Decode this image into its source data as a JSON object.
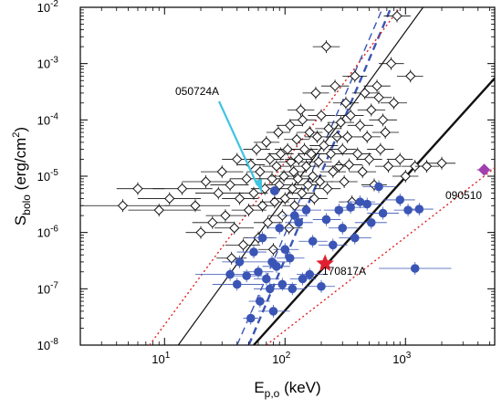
{
  "chart_data": {
    "type": "scatter",
    "title": "",
    "xlabel": {
      "main": "E",
      "sub": "p,o",
      "unit": " (keV)"
    },
    "ylabel": {
      "main": "S",
      "sub": "bolo",
      "unit_pre": " (erg/cm",
      "unit_sup": "2",
      "unit_post": ")"
    },
    "x_scale": "log",
    "y_scale": "log",
    "xlim": [
      2,
      5500
    ],
    "ylim": [
      1e-08,
      0.01
    ],
    "x_ticks": [
      {
        "value": 10,
        "base": "10",
        "exp": "1"
      },
      {
        "value": 100,
        "base": "10",
        "exp": "2"
      },
      {
        "value": 1000,
        "base": "10",
        "exp": "3"
      }
    ],
    "y_ticks": [
      {
        "value": 1e-08,
        "base": "10",
        "exp": "-8"
      },
      {
        "value": 1e-07,
        "base": "10",
        "exp": "-7"
      },
      {
        "value": 1e-06,
        "base": "10",
        "exp": "-6"
      },
      {
        "value": 1e-05,
        "base": "10",
        "exp": "-5"
      },
      {
        "value": 0.0001,
        "base": "10",
        "exp": "-4"
      },
      {
        "value": 0.001,
        "base": "10",
        "exp": "-3"
      },
      {
        "value": 0.01,
        "base": "10",
        "exp": "-2"
      }
    ],
    "grid": false,
    "legend": "none",
    "colors": {
      "long": "#111111",
      "short": "#3a55b5",
      "red_fit": "#e02020",
      "star": "#e02030",
      "special": "#a040b0",
      "arrow": "#40c4e0"
    },
    "lines": [
      {
        "group": "black-solid-thin",
        "color": "#111111",
        "style": "solid",
        "width": 1.2,
        "points": [
          [
            13,
            1e-08
          ],
          [
            1400,
            0.01
          ]
        ]
      },
      {
        "group": "black-solid-thick",
        "color": "#111111",
        "style": "solid",
        "width": 2.4,
        "points": [
          [
            55,
            1e-08
          ],
          [
            5500,
            0.00055
          ]
        ]
      },
      {
        "group": "blue-dashed-thin",
        "color": "#3a55b5",
        "style": "dashed",
        "width": 1.4,
        "points": [
          [
            40,
            1e-08
          ],
          [
            650,
            0.01
          ]
        ]
      },
      {
        "group": "blue-dashed-thick",
        "color": "#3a55b5",
        "style": "dashed",
        "width": 2.4,
        "points": [
          [
            50,
            1e-08
          ],
          [
            760,
            0.01
          ]
        ]
      },
      {
        "group": "red-dotted-left",
        "color": "#e02020",
        "style": "dotted",
        "width": 1.4,
        "points": [
          [
            7.5,
            1e-08
          ],
          [
            900,
            0.01
          ]
        ]
      },
      {
        "group": "red-dotted-right",
        "color": "#e02020",
        "style": "dotted",
        "width": 1.4,
        "points": [
          [
            70,
            1e-08
          ],
          [
            5500,
            1.4e-05
          ]
        ]
      }
    ],
    "series": [
      {
        "marker": "diamond",
        "color": "#111111",
        "points": [
          [
            4.5,
            3e-06,
            1.5,
            11
          ],
          [
            6,
            6e-06,
            4,
            10
          ],
          [
            9,
            2.5e-06,
            5,
            20
          ],
          [
            11,
            4e-06,
            6,
            20
          ],
          [
            14,
            6e-06,
            8,
            25
          ],
          [
            18,
            3e-06,
            10,
            35
          ],
          [
            20,
            1e-06,
            15,
            30
          ],
          [
            22,
            8e-06,
            14,
            35
          ],
          [
            25,
            1.5e-06,
            17,
            38
          ],
          [
            28,
            5e-06,
            18,
            45
          ],
          [
            30,
            1.2e-05,
            20,
            45
          ],
          [
            32,
            2e-06,
            22,
            48
          ],
          [
            35,
            7e-06,
            24,
            50
          ],
          [
            36,
            3.5e-07,
            27,
            48
          ],
          [
            38,
            1.2e-06,
            26,
            55
          ],
          [
            40,
            2e-05,
            30,
            55
          ],
          [
            42,
            4e-06,
            30,
            60
          ],
          [
            45,
            6e-07,
            32,
            62
          ],
          [
            48,
            9e-06,
            35,
            65
          ],
          [
            50,
            2.5e-06,
            36,
            70
          ],
          [
            52,
            1.6e-05,
            40,
            68
          ],
          [
            55,
            5e-06,
            42,
            72
          ],
          [
            58,
            3e-05,
            45,
            75
          ],
          [
            60,
            8e-07,
            45,
            80
          ],
          [
            62,
            1.2e-05,
            48,
            80
          ],
          [
            65,
            3e-06,
            50,
            85
          ],
          [
            68,
            6e-06,
            52,
            88
          ],
          [
            70,
            4e-05,
            55,
            90
          ],
          [
            72,
            1.5e-06,
            55,
            95
          ],
          [
            75,
            2e-05,
            58,
            98
          ],
          [
            78,
            9e-06,
            60,
            100
          ],
          [
            80,
            5e-07,
            60,
            105
          ],
          [
            82,
            3.5e-06,
            62,
            108
          ],
          [
            85,
            1.5e-05,
            65,
            110
          ],
          [
            88,
            6e-05,
            70,
            110
          ],
          [
            90,
            7e-06,
            70,
            115
          ],
          [
            92,
            2.5e-05,
            72,
            118
          ],
          [
            95,
            2e-06,
            72,
            125
          ],
          [
            98,
            1e-05,
            76,
            125
          ],
          [
            100,
            4e-06,
            78,
            130
          ],
          [
            105,
            3e-05,
            82,
            135
          ],
          [
            108,
            1.2e-06,
            84,
            140
          ],
          [
            110,
            8e-05,
            85,
            140
          ],
          [
            112,
            1.8e-05,
            88,
            145
          ],
          [
            115,
            6e-06,
            90,
            148
          ],
          [
            118,
            1.2e-05,
            92,
            150
          ],
          [
            120,
            3e-06,
            95,
            155
          ],
          [
            125,
            4.5e-05,
            98,
            160
          ],
          [
            128,
            9e-06,
            100,
            165
          ],
          [
            130,
            2e-05,
            100,
            170
          ],
          [
            135,
            0.00015,
            105,
            175
          ],
          [
            138,
            5e-06,
            108,
            178
          ],
          [
            140,
            0.0001,
            110,
            180
          ],
          [
            145,
            3e-05,
            112,
            188
          ],
          [
            150,
            1.5e-05,
            118,
            192
          ],
          [
            155,
            7e-06,
            120,
            200
          ],
          [
            160,
            6e-05,
            125,
            205
          ],
          [
            165,
            2.5e-05,
            128,
            212
          ],
          [
            170,
            1e-05,
            132,
            220
          ],
          [
            175,
            4e-06,
            135,
            225
          ],
          [
            180,
            0.0003,
            140,
            232
          ],
          [
            185,
            5e-05,
            145,
            240
          ],
          [
            190,
            1.8e-05,
            148,
            245
          ],
          [
            195,
            8e-06,
            150,
            250
          ],
          [
            200,
            0.00012,
            155,
            260
          ],
          [
            210,
            3.5e-05,
            160,
            275
          ],
          [
            220,
            0.002,
            170,
            285
          ],
          [
            225,
            6e-06,
            175,
            290
          ],
          [
            230,
            7e-05,
            178,
            295
          ],
          [
            240,
            2.5e-05,
            185,
            310
          ],
          [
            250,
            1.2e-05,
            195,
            320
          ],
          [
            260,
            0.0004,
            200,
            340
          ],
          [
            270,
            5e-05,
            210,
            350
          ],
          [
            280,
            1.5e-05,
            215,
            360
          ],
          [
            290,
            9e-05,
            225,
            375
          ],
          [
            300,
            3e-05,
            230,
            390
          ],
          [
            310,
            8e-06,
            240,
            400
          ],
          [
            320,
            0.0002,
            250,
            410
          ],
          [
            330,
            5e-05,
            255,
            430
          ],
          [
            340,
            1.6e-05,
            265,
            440
          ],
          [
            350,
            0.00012,
            270,
            450
          ],
          [
            360,
            3.5e-06,
            280,
            460
          ],
          [
            380,
            0.0006,
            300,
            480
          ],
          [
            400,
            2.5e-05,
            310,
            520
          ],
          [
            420,
            8e-05,
            330,
            540
          ],
          [
            440,
            1.2e-05,
            340,
            570
          ],
          [
            460,
            0.0003,
            360,
            590
          ],
          [
            480,
            5e-05,
            375,
            620
          ],
          [
            500,
            2e-05,
            390,
            640
          ],
          [
            520,
            0.00015,
            400,
            680
          ],
          [
            550,
            7e-06,
            430,
            700
          ],
          [
            580,
            0.0004,
            450,
            750
          ],
          [
            600,
            0.00025,
            470,
            770
          ],
          [
            620,
            3e-05,
            480,
            800
          ],
          [
            650,
            0.0001,
            500,
            850
          ],
          [
            680,
            6e-05,
            530,
            880
          ],
          [
            720,
            1.5e-05,
            560,
            920
          ],
          [
            760,
            0.001,
            600,
            970
          ],
          [
            800,
            0.0002,
            620,
            1030
          ],
          [
            850,
            0.007,
            660,
            1100
          ],
          [
            900,
            2e-05,
            700,
            1150
          ],
          [
            1000,
            1e-05,
            780,
            1280
          ],
          [
            1100,
            0.0006,
            850,
            1400
          ],
          [
            1200,
            1.5e-05,
            930,
            1550
          ],
          [
            1500,
            1.5e-05,
            1200,
            1900
          ],
          [
            2000,
            1.7e-05,
            1500,
            2600
          ]
        ]
      },
      {
        "marker": "circle",
        "color": "#3a55b5",
        "points": [
          [
            35,
            1.8e-07,
            18,
            60
          ],
          [
            40,
            1.2e-07,
            25,
            65
          ],
          [
            42,
            3e-07,
            30,
            60
          ],
          [
            48,
            1.7e-07,
            35,
            65
          ],
          [
            52,
            3e-08,
            45,
            60
          ],
          [
            55,
            4.5e-07,
            40,
            70
          ],
          [
            60,
            2e-07,
            45,
            80
          ],
          [
            62,
            6e-08,
            50,
            75
          ],
          [
            65,
            8e-07,
            50,
            85
          ],
          [
            70,
            1.5e-07,
            55,
            90
          ],
          [
            75,
            1e-07,
            55,
            100
          ],
          [
            78,
            3e-07,
            60,
            105
          ],
          [
            80,
            4e-08,
            60,
            110
          ],
          [
            85,
            2.5e-07,
            65,
            110
          ],
          [
            90,
            1.2e-06,
            70,
            115
          ],
          [
            95,
            1.2e-07,
            75,
            125
          ],
          [
            100,
            5e-07,
            80,
            130
          ],
          [
            110,
            3.5e-07,
            85,
            145
          ],
          [
            115,
            1e-07,
            90,
            150
          ],
          [
            120,
            2e-06,
            95,
            155
          ],
          [
            130,
            1.5e-06,
            100,
            170
          ],
          [
            140,
            1.5e-07,
            110,
            180
          ],
          [
            150,
            2.5e-06,
            115,
            200
          ],
          [
            160,
            1.8e-07,
            125,
            210
          ],
          [
            170,
            7e-07,
            130,
            225
          ],
          [
            200,
            1.1e-07,
            150,
            260
          ],
          [
            220,
            1.7e-06,
            170,
            290
          ],
          [
            250,
            6e-07,
            190,
            330
          ],
          [
            280,
            2.5e-06,
            210,
            380
          ],
          [
            300,
            1.2e-06,
            230,
            400
          ],
          [
            350,
            2.8e-06,
            260,
            470
          ],
          [
            380,
            8e-07,
            280,
            520
          ],
          [
            420,
            3.5e-06,
            310,
            560
          ],
          [
            480,
            3.2e-06,
            350,
            650
          ],
          [
            520,
            1.5e-06,
            380,
            700
          ],
          [
            600,
            6.5e-06,
            440,
            820
          ],
          [
            650,
            2.2e-06,
            480,
            880
          ],
          [
            900,
            3.8e-06,
            650,
            1200
          ],
          [
            1050,
            2.5e-06,
            800,
            1400
          ],
          [
            1300,
            2.6e-06,
            1000,
            1700
          ],
          [
            1200,
            2.3e-07,
            600,
            2400
          ]
        ]
      }
    ],
    "special_points": [
      {
        "label": "050724A",
        "x": 82,
        "y": 5.5e-06,
        "marker": "circle",
        "color": "#3a55b5"
      },
      {
        "label": "170817A",
        "x": 215,
        "y": 2.8e-07,
        "marker": "star",
        "color": "#e02030"
      },
      {
        "label": "090510",
        "x": 4500,
        "y": 1.3e-05,
        "marker": "diamond-filled",
        "color": "#a040b0"
      }
    ]
  }
}
